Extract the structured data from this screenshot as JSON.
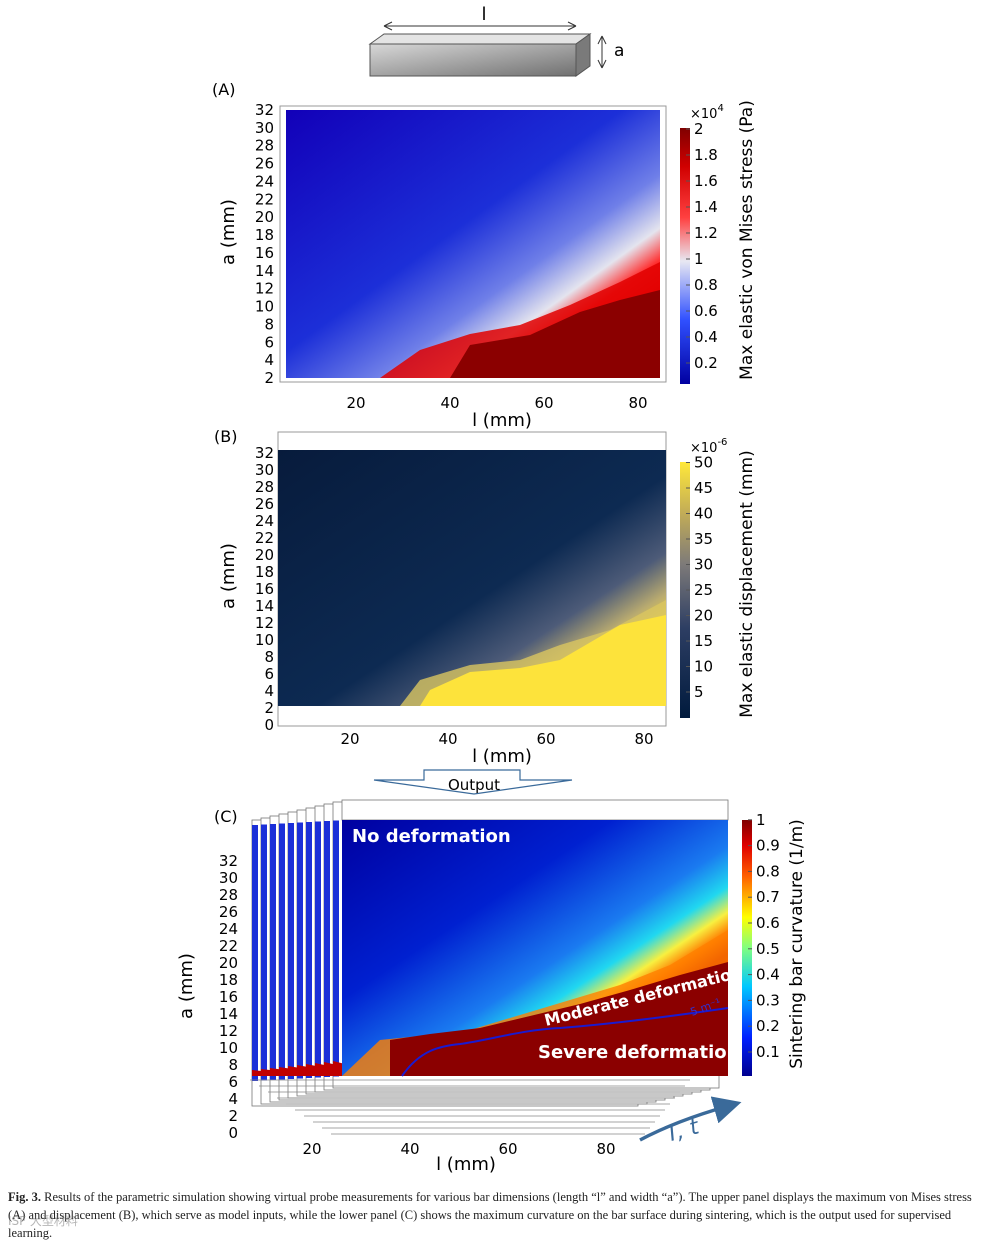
{
  "schematic": {
    "length_label": "l",
    "width_label": "a"
  },
  "panel_a": {
    "label": "(A)",
    "colorbar_title": "Max elastic von Mises stress (Pa)",
    "colorbar_exponent": "×10",
    "colorbar_exponent_power": "4",
    "colorbar_ticks": [
      "0.2",
      "0.4",
      "0.6",
      "0.8",
      "1",
      "1.2",
      "1.4",
      "1.6",
      "1.8",
      "2"
    ],
    "xlabel": "l  (mm)",
    "ylabel": "a (mm)",
    "xticks": [
      "20",
      "40",
      "60",
      "80"
    ],
    "yticks": [
      "2",
      "4",
      "6",
      "8",
      "10",
      "12",
      "14",
      "16",
      "18",
      "20",
      "22",
      "24",
      "26",
      "28",
      "30",
      "32"
    ]
  },
  "panel_b": {
    "label": "(B)",
    "colorbar_title": "Max elastic displacement (mm)",
    "colorbar_exponent": "×10",
    "colorbar_exponent_power": "-6",
    "colorbar_ticks": [
      "5",
      "10",
      "15",
      "20",
      "25",
      "30",
      "35",
      "40",
      "45",
      "50"
    ],
    "xlabel": "l  (mm)",
    "ylabel": "a (mm)",
    "xticks": [
      "20",
      "40",
      "60",
      "80"
    ],
    "yticks": [
      "0",
      "2",
      "4",
      "6",
      "8",
      "10",
      "12",
      "14",
      "16",
      "18",
      "20",
      "22",
      "24",
      "26",
      "28",
      "30",
      "32"
    ]
  },
  "output_label": "Output",
  "panel_c": {
    "label": "(C)",
    "colorbar_title": "Sintering bar curvature (1/m)",
    "colorbar_ticks": [
      "0.1",
      "0.2",
      "0.3",
      "0.4",
      "0.5",
      "0.6",
      "0.7",
      "0.8",
      "0.9",
      "1"
    ],
    "xlabel": "l  (mm)",
    "ylabel": "a (mm)",
    "xticks": [
      "20",
      "40",
      "60",
      "80"
    ],
    "yticks": [
      "0",
      "2",
      "4",
      "6",
      "8",
      "10",
      "12",
      "14",
      "16",
      "18",
      "20",
      "22",
      "24",
      "26",
      "28",
      "30",
      "32"
    ],
    "region_no_deformation": "No deformation",
    "region_moderate": "Moderate deformation",
    "region_severe": "Severe deformation",
    "contour_label": "5 m⁻¹",
    "stack_axis_label": "T, t"
  },
  "caption": {
    "prefix": "Fig. 3.",
    "text": "Results of the parametric simulation showing virtual probe measurements for various bar dimensions (length “l” and width “a”). The upper panel displays the maximum von Mises stress (A) and displacement (B), which serve as model inputs, while the lower panel (C) shows the maximum curvature on the bar surface during sintering, which is the output used for supervised learning."
  },
  "watermark": "ISF 大型材料",
  "colors": {
    "a_low": "#1a00c8",
    "a_mid": "#e8e8f0",
    "a_high": "#8b0000",
    "b_low": "#0a1f42",
    "b_high": "#fde33b",
    "c_deep": "#0b0b8a",
    "c_red": "#8b0000",
    "contour": "#1a1ad0",
    "arrow": "#3a6a9a"
  }
}
